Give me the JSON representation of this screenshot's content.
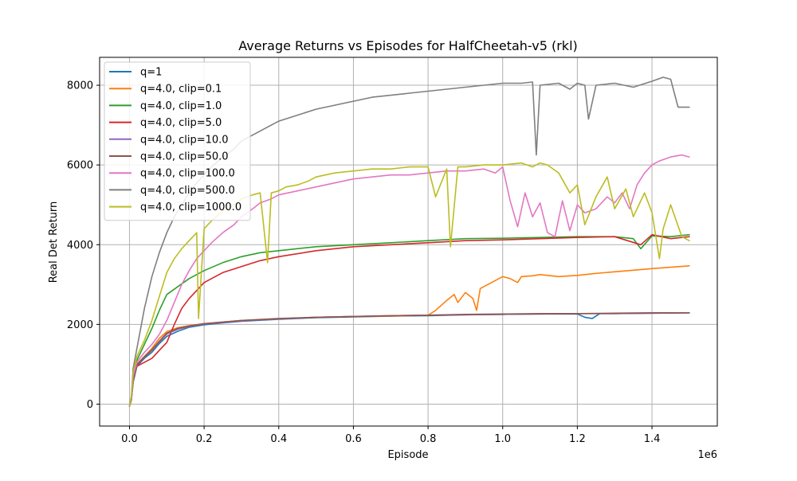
{
  "chart_data": {
    "type": "line",
    "title": "Average Returns vs Episodes for HalfCheetah-v5 (rkl)",
    "xlabel": "Episode",
    "ylabel": "Real Det Return",
    "x_scale_label": "1e6",
    "xlim": [
      -0.08,
      1.575
    ],
    "ylim": [
      -550,
      8700
    ],
    "x_ticks": [
      0.0,
      0.2,
      0.4,
      0.6,
      0.8,
      1.0,
      1.2,
      1.4
    ],
    "x_tick_labels": [
      "0.0",
      "0.2",
      "0.4",
      "0.6",
      "0.8",
      "1.0",
      "1.2",
      "1.4"
    ],
    "y_ticks": [
      0,
      2000,
      4000,
      6000,
      8000
    ],
    "y_tick_labels": [
      "0",
      "2000",
      "4000",
      "6000",
      "8000"
    ],
    "grid": true,
    "legend_position": "top-left",
    "series": [
      {
        "name": "q=1",
        "color": "#1f77b4",
        "x": [
          0.0,
          0.005,
          0.01,
          0.02,
          0.04,
          0.06,
          0.08,
          0.1,
          0.13,
          0.16,
          0.2,
          0.25,
          0.3,
          0.4,
          0.5,
          0.6,
          0.7,
          0.8,
          0.9,
          1.0,
          1.1,
          1.2,
          1.22,
          1.24,
          1.26,
          1.3,
          1.4,
          1.5
        ],
        "y": [
          -50,
          100,
          550,
          950,
          1150,
          1300,
          1520,
          1700,
          1830,
          1930,
          1990,
          2040,
          2080,
          2130,
          2170,
          2190,
          2210,
          2220,
          2240,
          2250,
          2260,
          2260,
          2180,
          2150,
          2270,
          2270,
          2280,
          2290
        ]
      },
      {
        "name": "q=4.0, clip=0.1",
        "color": "#ff7f0e",
        "x": [
          0.0,
          0.005,
          0.01,
          0.02,
          0.04,
          0.06,
          0.08,
          0.1,
          0.13,
          0.16,
          0.2,
          0.3,
          0.4,
          0.5,
          0.6,
          0.7,
          0.8,
          0.82,
          0.85,
          0.87,
          0.88,
          0.9,
          0.92,
          0.93,
          0.94,
          0.96,
          0.98,
          1.0,
          1.02,
          1.04,
          1.05,
          1.08,
          1.1,
          1.15,
          1.2,
          1.25,
          1.3,
          1.4,
          1.5
        ],
        "y": [
          -50,
          120,
          600,
          1000,
          1200,
          1400,
          1650,
          1820,
          1920,
          1970,
          2020,
          2100,
          2140,
          2180,
          2200,
          2210,
          2230,
          2350,
          2600,
          2750,
          2550,
          2800,
          2650,
          2350,
          2900,
          3000,
          3100,
          3200,
          3150,
          3050,
          3200,
          3220,
          3250,
          3200,
          3230,
          3280,
          3320,
          3400,
          3470
        ]
      },
      {
        "name": "q=4.0, clip=1.0",
        "color": "#2ca02c",
        "x": [
          0.0,
          0.005,
          0.01,
          0.02,
          0.04,
          0.06,
          0.08,
          0.1,
          0.13,
          0.16,
          0.2,
          0.25,
          0.3,
          0.35,
          0.4,
          0.5,
          0.6,
          0.7,
          0.8,
          0.9,
          1.0,
          1.1,
          1.2,
          1.3,
          1.35,
          1.37,
          1.4,
          1.45,
          1.5
        ],
        "y": [
          -50,
          150,
          700,
          1100,
          1500,
          1900,
          2350,
          2750,
          2950,
          3150,
          3350,
          3550,
          3700,
          3800,
          3850,
          3950,
          4000,
          4050,
          4100,
          4150,
          4160,
          4180,
          4200,
          4200,
          4150,
          3900,
          4220,
          4200,
          4250
        ]
      },
      {
        "name": "q=4.0, clip=5.0",
        "color": "#d62728",
        "x": [
          0.0,
          0.005,
          0.01,
          0.02,
          0.04,
          0.06,
          0.08,
          0.1,
          0.12,
          0.14,
          0.16,
          0.18,
          0.2,
          0.25,
          0.3,
          0.35,
          0.4,
          0.5,
          0.6,
          0.7,
          0.8,
          0.9,
          1.0,
          1.1,
          1.2,
          1.3,
          1.37,
          1.4,
          1.45,
          1.5
        ],
        "y": [
          -50,
          150,
          650,
          950,
          1050,
          1150,
          1350,
          1550,
          2000,
          2400,
          2650,
          2850,
          3050,
          3300,
          3450,
          3600,
          3700,
          3850,
          3950,
          4000,
          4050,
          4100,
          4120,
          4150,
          4180,
          4200,
          4000,
          4250,
          4150,
          4200
        ]
      },
      {
        "name": "q=4.0, clip=10.0",
        "color": "#9467bd",
        "x": [
          0.0,
          0.005,
          0.01,
          0.02,
          0.04,
          0.06,
          0.08,
          0.1,
          0.13,
          0.16,
          0.2,
          0.3,
          0.4,
          0.5,
          0.6,
          0.7,
          0.8,
          0.9,
          1.0,
          1.1,
          1.2,
          1.3,
          1.4,
          1.5
        ],
        "y": [
          -50,
          100,
          580,
          980,
          1180,
          1350,
          1560,
          1760,
          1880,
          1950,
          2010,
          2090,
          2140,
          2180,
          2200,
          2220,
          2230,
          2240,
          2250,
          2260,
          2270,
          2270,
          2280,
          2290
        ]
      },
      {
        "name": "q=4.0, clip=50.0",
        "color": "#8c564b",
        "x": [
          0.0,
          0.005,
          0.01,
          0.02,
          0.04,
          0.06,
          0.08,
          0.1,
          0.13,
          0.16,
          0.2,
          0.3,
          0.4,
          0.5,
          0.6,
          0.7,
          0.8,
          0.9,
          1.0,
          1.1,
          1.2,
          1.3,
          1.4,
          1.5
        ],
        "y": [
          -50,
          110,
          590,
          990,
          1190,
          1360,
          1580,
          1780,
          1900,
          1960,
          2020,
          2100,
          2150,
          2180,
          2200,
          2220,
          2230,
          2250,
          2260,
          2270,
          2270,
          2280,
          2290,
          2290
        ]
      },
      {
        "name": "q=4.0, clip=100.0",
        "color": "#e377c2",
        "x": [
          0.0,
          0.005,
          0.01,
          0.02,
          0.04,
          0.06,
          0.08,
          0.1,
          0.12,
          0.14,
          0.16,
          0.18,
          0.2,
          0.22,
          0.25,
          0.28,
          0.3,
          0.33,
          0.35,
          0.38,
          0.4,
          0.45,
          0.5,
          0.55,
          0.6,
          0.65,
          0.7,
          0.75,
          0.8,
          0.85,
          0.9,
          0.95,
          0.98,
          1.0,
          1.02,
          1.04,
          1.06,
          1.08,
          1.1,
          1.12,
          1.14,
          1.16,
          1.18,
          1.2,
          1.22,
          1.25,
          1.28,
          1.3,
          1.32,
          1.34,
          1.36,
          1.38,
          1.4,
          1.42,
          1.45,
          1.48,
          1.5
        ],
        "y": [
          -50,
          150,
          700,
          1050,
          1300,
          1500,
          1750,
          2100,
          2550,
          3000,
          3350,
          3650,
          3850,
          4050,
          4300,
          4500,
          4700,
          4900,
          5050,
          5150,
          5250,
          5350,
          5450,
          5550,
          5650,
          5700,
          5750,
          5750,
          5800,
          5850,
          5850,
          5900,
          5800,
          5950,
          5100,
          4450,
          5300,
          4700,
          5050,
          4300,
          4200,
          5100,
          4350,
          5000,
          4800,
          4900,
          5200,
          5050,
          5300,
          4900,
          5500,
          5800,
          6000,
          6100,
          6200,
          6250,
          6200
        ]
      },
      {
        "name": "q=4.0, clip=500.0",
        "color": "#7f7f7f",
        "x": [
          0.0,
          0.005,
          0.01,
          0.02,
          0.03,
          0.04,
          0.06,
          0.08,
          0.1,
          0.12,
          0.14,
          0.16,
          0.18,
          0.2,
          0.22,
          0.25,
          0.28,
          0.3,
          0.32,
          0.35,
          0.38,
          0.4,
          0.45,
          0.5,
          0.55,
          0.6,
          0.65,
          0.7,
          0.75,
          0.8,
          0.85,
          0.9,
          0.95,
          1.0,
          1.05,
          1.08,
          1.09,
          1.1,
          1.15,
          1.18,
          1.2,
          1.22,
          1.23,
          1.25,
          1.3,
          1.35,
          1.4,
          1.43,
          1.45,
          1.47,
          1.5
        ],
        "y": [
          -50,
          200,
          900,
          1400,
          1900,
          2400,
          3200,
          3800,
          4300,
          4700,
          5000,
          5300,
          5550,
          5750,
          5950,
          6200,
          6400,
          6600,
          6700,
          6850,
          7000,
          7100,
          7250,
          7400,
          7500,
          7600,
          7700,
          7750,
          7800,
          7850,
          7900,
          7950,
          8000,
          8050,
          8050,
          8080,
          6250,
          8000,
          8050,
          7900,
          8050,
          8000,
          7150,
          8000,
          8050,
          7950,
          8100,
          8200,
          8150,
          7450,
          7450
        ]
      },
      {
        "name": "q=4.0, clip=1000.0",
        "color": "#bcbd22",
        "x": [
          0.0,
          0.005,
          0.01,
          0.02,
          0.04,
          0.06,
          0.08,
          0.1,
          0.12,
          0.14,
          0.16,
          0.18,
          0.185,
          0.2,
          0.22,
          0.25,
          0.28,
          0.3,
          0.33,
          0.35,
          0.37,
          0.38,
          0.4,
          0.42,
          0.45,
          0.48,
          0.5,
          0.55,
          0.6,
          0.65,
          0.7,
          0.75,
          0.8,
          0.82,
          0.85,
          0.86,
          0.88,
          0.9,
          0.95,
          1.0,
          1.05,
          1.08,
          1.1,
          1.12,
          1.15,
          1.18,
          1.2,
          1.22,
          1.25,
          1.28,
          1.3,
          1.33,
          1.35,
          1.38,
          1.4,
          1.42,
          1.43,
          1.45,
          1.48,
          1.5
        ],
        "y": [
          -50,
          150,
          800,
          1200,
          1600,
          2100,
          2700,
          3300,
          3650,
          3900,
          4100,
          4300,
          2150,
          4400,
          4600,
          4850,
          5000,
          5150,
          5250,
          5300,
          3550,
          5300,
          5350,
          5450,
          5500,
          5600,
          5700,
          5800,
          5850,
          5900,
          5900,
          5950,
          5950,
          5200,
          5900,
          3950,
          5950,
          5950,
          6000,
          6000,
          6050,
          5950,
          6050,
          6000,
          5800,
          5300,
          5500,
          4500,
          5200,
          5700,
          4900,
          5400,
          4700,
          5300,
          4800,
          3650,
          4400,
          5000,
          4200,
          4100
        ]
      }
    ]
  }
}
